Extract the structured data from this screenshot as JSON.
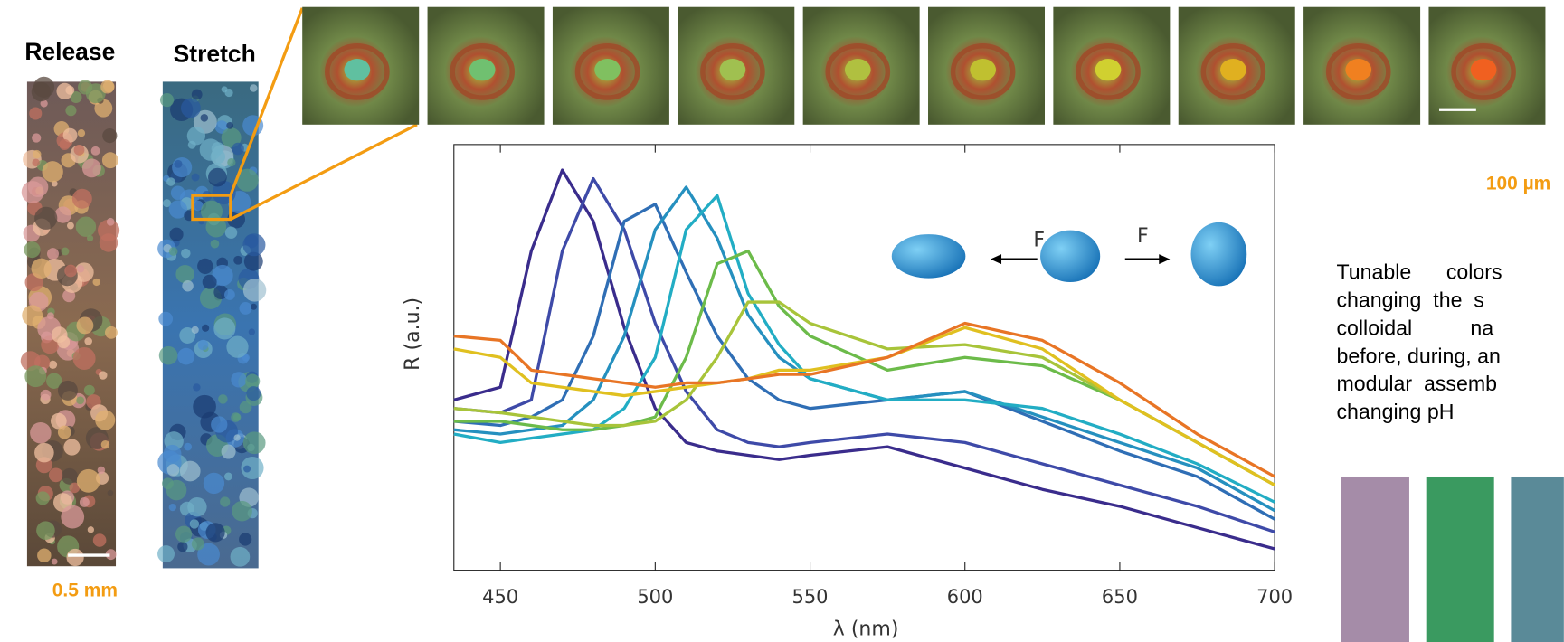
{
  "labels": {
    "release": "Release",
    "stretch": "Stretch",
    "scale_left": "0.5 mm",
    "scale_top": "100 µm",
    "force_left": "F",
    "force_right": "F"
  },
  "caption": {
    "lines": [
      "Tunable      colors",
      "changing  the  s",
      "colloidal          na",
      "before, during, an",
      "modular  assemb",
      "changing pH"
    ]
  },
  "chart_data": {
    "type": "line",
    "xlabel": "λ (nm)",
    "ylabel": "R (a.u.)",
    "x": [
      435,
      450,
      460,
      470,
      480,
      490,
      500,
      510,
      520,
      530,
      540,
      550,
      575,
      600,
      625,
      650,
      675,
      700
    ],
    "xlim": [
      435,
      700
    ],
    "ylim": [
      0,
      1
    ],
    "xticks": [
      450,
      500,
      550,
      600,
      650,
      700
    ],
    "series": [
      {
        "color": "#3a2c8c",
        "values": [
          0.4,
          0.43,
          0.75,
          0.94,
          0.82,
          0.57,
          0.38,
          0.3,
          0.28,
          0.27,
          0.26,
          0.27,
          0.29,
          0.24,
          0.19,
          0.15,
          0.1,
          0.05
        ]
      },
      {
        "color": "#3e4aa8",
        "values": [
          0.38,
          0.37,
          0.4,
          0.75,
          0.92,
          0.8,
          0.58,
          0.42,
          0.33,
          0.3,
          0.29,
          0.3,
          0.32,
          0.3,
          0.25,
          0.2,
          0.15,
          0.09
        ]
      },
      {
        "color": "#2f6eb5",
        "values": [
          0.35,
          0.34,
          0.36,
          0.4,
          0.55,
          0.82,
          0.86,
          0.7,
          0.55,
          0.45,
          0.4,
          0.38,
          0.4,
          0.42,
          0.35,
          0.28,
          0.22,
          0.12
        ]
      },
      {
        "color": "#2590bf",
        "values": [
          0.33,
          0.32,
          0.33,
          0.34,
          0.4,
          0.55,
          0.8,
          0.9,
          0.78,
          0.6,
          0.5,
          0.45,
          0.4,
          0.42,
          0.36,
          0.3,
          0.24,
          0.14
        ]
      },
      {
        "color": "#22adc4",
        "values": [
          0.32,
          0.3,
          0.31,
          0.32,
          0.33,
          0.38,
          0.5,
          0.8,
          0.88,
          0.65,
          0.53,
          0.45,
          0.4,
          0.4,
          0.38,
          0.32,
          0.25,
          0.16
        ]
      },
      {
        "color": "#6cbb4a",
        "values": [
          0.35,
          0.35,
          0.34,
          0.33,
          0.33,
          0.34,
          0.36,
          0.5,
          0.72,
          0.75,
          0.62,
          0.55,
          0.47,
          0.5,
          0.48,
          0.4,
          0.3,
          0.2
        ]
      },
      {
        "color": "#a8c43a",
        "values": [
          0.38,
          0.37,
          0.36,
          0.35,
          0.34,
          0.34,
          0.35,
          0.4,
          0.5,
          0.63,
          0.63,
          0.58,
          0.52,
          0.53,
          0.5,
          0.4,
          0.3,
          0.2
        ]
      },
      {
        "color": "#e0c020",
        "values": [
          0.52,
          0.5,
          0.44,
          0.43,
          0.42,
          0.41,
          0.42,
          0.43,
          0.44,
          0.45,
          0.47,
          0.47,
          0.5,
          0.57,
          0.52,
          0.4,
          0.3,
          0.2
        ]
      },
      {
        "color": "#e87525",
        "values": [
          0.55,
          0.54,
          0.47,
          0.46,
          0.45,
          0.44,
          0.43,
          0.44,
          0.44,
          0.45,
          0.46,
          0.46,
          0.5,
          0.58,
          0.54,
          0.44,
          0.32,
          0.22
        ]
      }
    ]
  }
}
